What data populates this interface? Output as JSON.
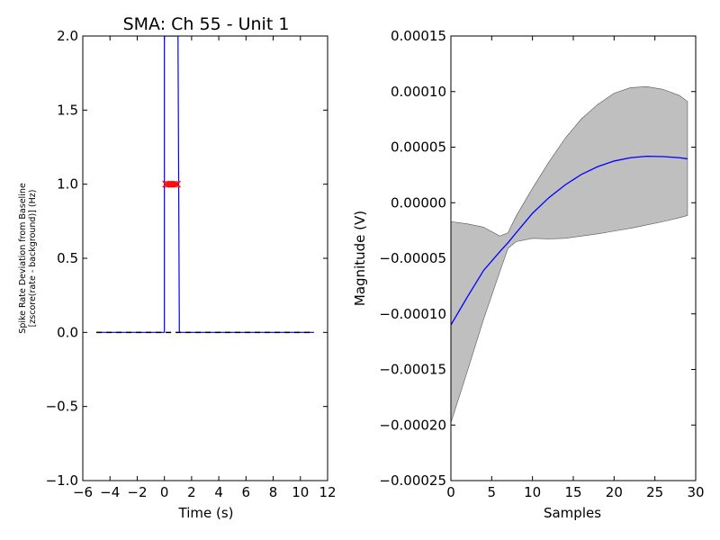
{
  "chart_data": [
    {
      "type": "line",
      "title": "SMA: Ch 55 - Unit 1",
      "xlabel": "Time (s)",
      "ylabel_lines": [
        "Spike Rate Deviation from Baseline",
        "[zscore(rate - background)] (Hz)"
      ],
      "xlim": [
        -6,
        12
      ],
      "ylim": [
        -1.0,
        2.0
      ],
      "xticks": [
        -6,
        -4,
        -2,
        0,
        2,
        4,
        6,
        8,
        10,
        12
      ],
      "yticks": [
        -1.0,
        -0.5,
        0.0,
        0.5,
        1.0,
        1.5,
        2.0
      ],
      "xtick_labels": [
        "−6",
        "−4",
        "−2",
        "0",
        "2",
        "4",
        "6",
        "8",
        "10",
        "12"
      ],
      "ytick_labels": [
        "−1.0",
        "−0.5",
        "0.0",
        "0.5",
        "1.0",
        "1.5",
        "2.0"
      ],
      "grid": false,
      "series": [
        {
          "color": "#0000ff",
          "style": "solid",
          "x": [
            -5.0,
            -0.1,
            0.0,
            0.0,
            0.05,
            0.9,
            1.0,
            1.1,
            11.0
          ],
          "y": [
            0.0,
            0.0,
            0.0,
            2.0,
            2.0,
            2.0,
            2.0,
            0.0,
            0.0
          ]
        },
        {
          "color": "#000000",
          "style": "dashed",
          "x": [
            -5.0,
            11.0
          ],
          "y": [
            0.0,
            0.0
          ]
        },
        {
          "color": "#ff0000",
          "style": "markers-x",
          "x": [
            0.1,
            0.25,
            0.4,
            0.55,
            0.7,
            0.85,
            0.95
          ],
          "y": [
            1.0,
            1.0,
            1.0,
            1.0,
            1.0,
            1.0,
            1.0
          ]
        }
      ]
    },
    {
      "type": "area",
      "title": "",
      "xlabel": "Samples",
      "ylabel": "Magnitude (V)",
      "xlim": [
        0,
        30
      ],
      "ylim": [
        -0.00025,
        0.00015
      ],
      "xticks": [
        0,
        5,
        10,
        15,
        20,
        25,
        30
      ],
      "yticks": [
        -0.00025,
        -0.0002,
        -0.00015,
        -0.0001,
        -5e-05,
        0.0,
        5e-05,
        0.0001,
        0.00015
      ],
      "xtick_labels": [
        "0",
        "5",
        "10",
        "15",
        "20",
        "25",
        "30"
      ],
      "ytick_labels": [
        "−0.00025",
        "−0.00020",
        "−0.00015",
        "−0.00010",
        "−0.00005",
        "0.00000",
        "0.00005",
        "0.00010",
        "0.00015"
      ],
      "grid": false,
      "band_color": "#bfbfbf",
      "line_color": "#0000ff",
      "x": [
        0,
        2,
        4,
        6,
        7,
        8,
        10,
        12,
        14,
        16,
        18,
        20,
        22,
        24,
        26,
        28,
        29
      ],
      "mean": [
        -0.00011,
        -8.5e-05,
        -6.1e-05,
        -4.4e-05,
        -3.6e-05,
        -2.7e-05,
        -9.5e-06,
        4.5e-06,
        1.6e-05,
        2.55e-05,
        3.25e-05,
        3.75e-05,
        4.05e-05,
        4.18e-05,
        4.15e-05,
        4.05e-05,
        3.95e-05
      ],
      "upper": [
        -1.7e-05,
        -1.9e-05,
        -2.2e-05,
        -3e-05,
        -2.7e-05,
        -1.2e-05,
        1.3e-05,
        3.65e-05,
        5.8e-05,
        7.55e-05,
        8.85e-05,
        9.85e-05,
        0.0001035,
        0.0001045,
        0.000102,
        9.65e-05,
        9.1e-05
      ],
      "lower": [
        -0.000198,
        -0.000152,
        -0.000105,
        -6.2e-05,
        -4.1e-05,
        -3.5e-05,
        -3.2e-05,
        -3.25e-05,
        -3.2e-05,
        -3e-05,
        -2.8e-05,
        -2.55e-05,
        -2.3e-05,
        -2e-05,
        -1.7e-05,
        -1.35e-05,
        -1.15e-05
      ]
    }
  ]
}
